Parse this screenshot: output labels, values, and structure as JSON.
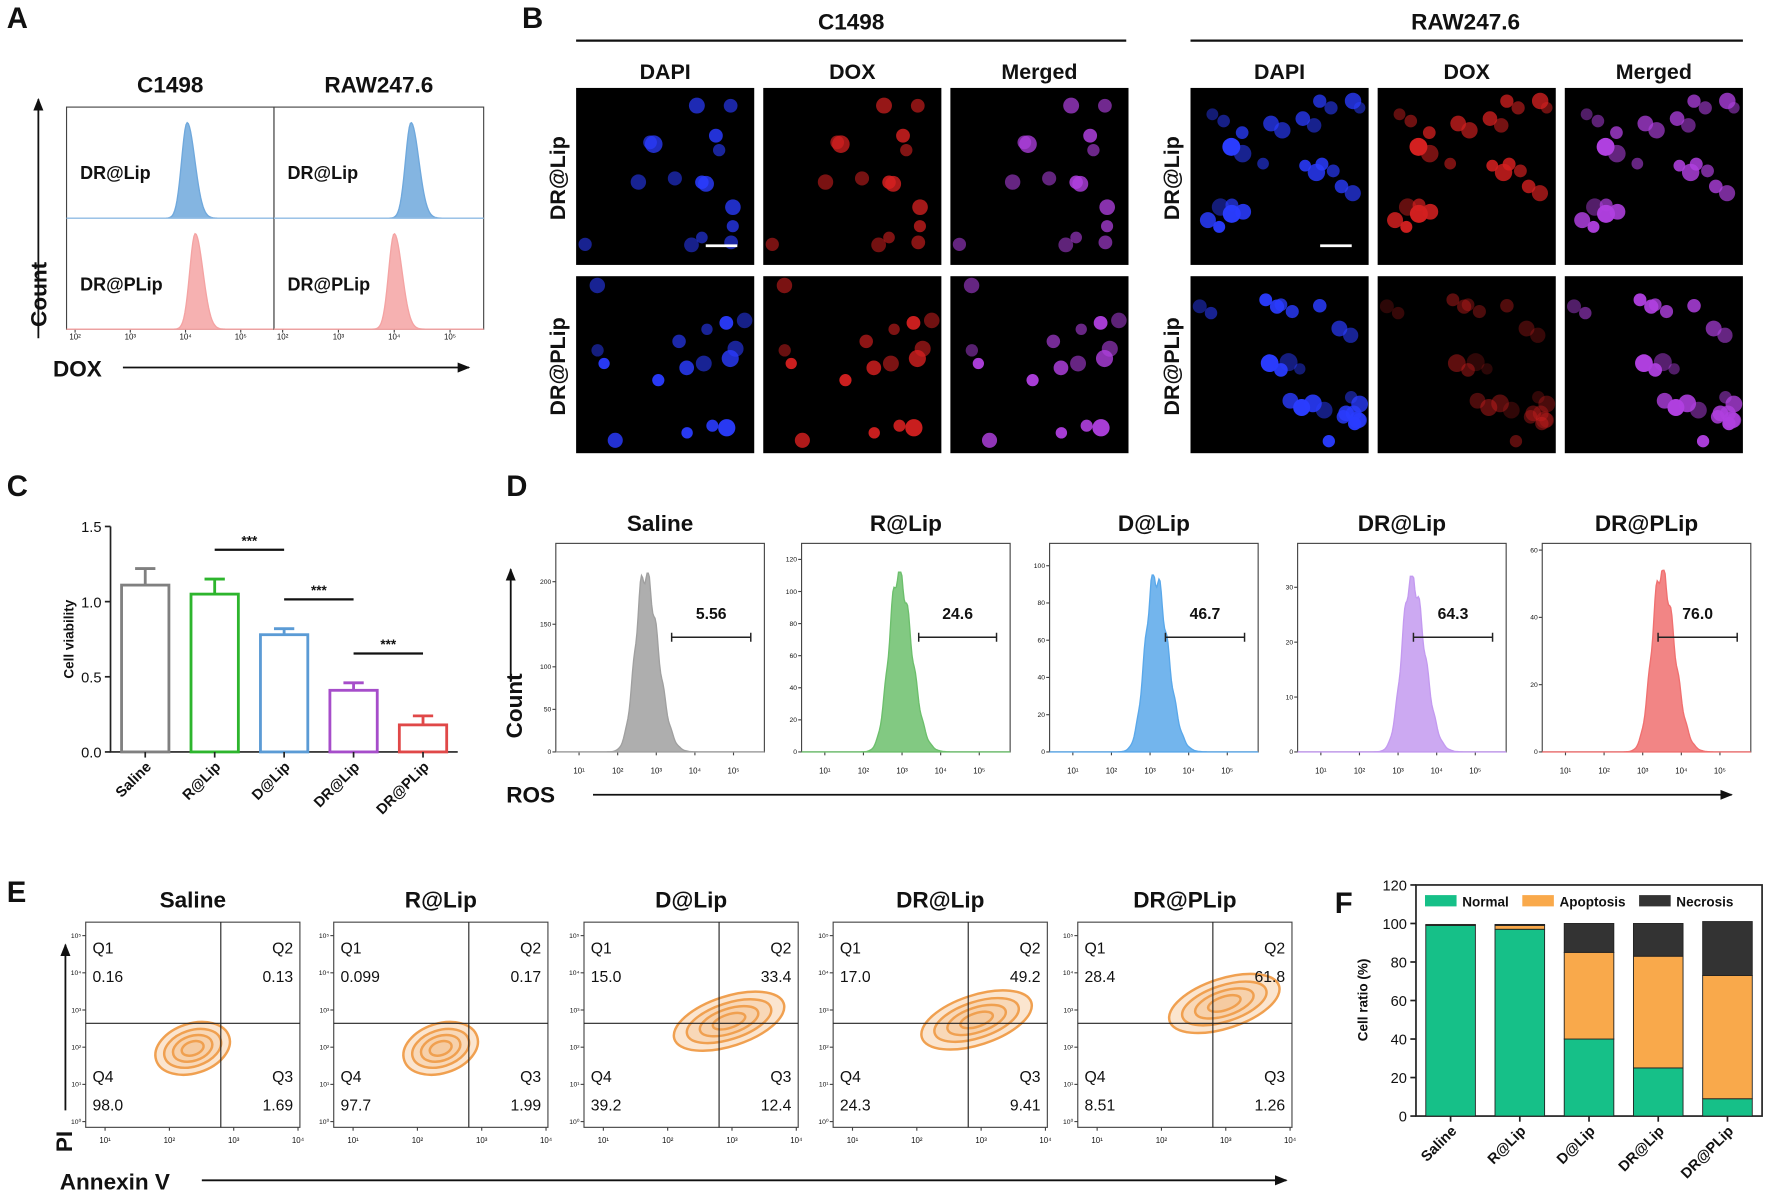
{
  "images": {
    "panel_label": "B",
    "groups": [
      {
        "title": "C1498",
        "columns": [
          "DAPI",
          "DOX",
          "Merged"
        ],
        "rows": [
          "DR@Lip",
          "DR@PLip"
        ]
      },
      {
        "title": "RAW247.6",
        "columns": [
          "DAPI",
          "DOX",
          "Merged"
        ],
        "rows": [
          "DR@Lip",
          "DR@PLip"
        ]
      }
    ]
  },
  "chart_data": [
    {
      "type": "histogram",
      "panel_label": "A",
      "x_label": "DOX",
      "y_label": "Count",
      "xscale": "log",
      "xlim": [
        70,
        400000
      ],
      "xticks": [
        {
          "value": 100,
          "label": "10²"
        },
        {
          "value": 1000,
          "label": "10³"
        },
        {
          "value": 10000,
          "label": "10⁴"
        },
        {
          "value": 100000,
          "label": "10⁵"
        }
      ],
      "panels": [
        {
          "title": "C1498",
          "series": [
            {
              "name": "DR@Lip",
              "color": "#6fa8dc",
              "peak": 10700
            },
            {
              "name": "DR@PLip",
              "color": "#f4a3a3",
              "peak": 15000
            }
          ]
        },
        {
          "title": "RAW247.6",
          "series": [
            {
              "name": "DR@Lip",
              "color": "#6fa8dc",
              "peak": 20000
            },
            {
              "name": "DR@PLip",
              "color": "#f4a3a3",
              "peak": 10000
            }
          ]
        }
      ]
    },
    {
      "type": "bar",
      "panel_label": "C",
      "y_label": "Cell viability",
      "categories": [
        "Saline",
        "R@Lip",
        "D@Lip",
        "DR@Lip",
        "DR@PLip"
      ],
      "values": [
        1.11,
        1.05,
        0.78,
        0.41,
        0.18
      ],
      "errors": [
        0.11,
        0.1,
        0.04,
        0.05,
        0.06
      ],
      "colors": [
        "#808080",
        "#2db52d",
        "#5b9bd5",
        "#a64dca",
        "#e04848"
      ],
      "ylim": [
        0,
        1.5
      ],
      "yticks": [
        {
          "value": 0,
          "label": "0.0"
        },
        0.5,
        {
          "value": 1,
          "label": "1.0"
        },
        1.5
      ],
      "annotations": [
        {
          "text": "***",
          "pair": [
            1,
            2
          ]
        },
        {
          "text": "***",
          "pair": [
            2,
            3
          ]
        },
        {
          "text": "***",
          "pair": [
            3,
            4
          ]
        }
      ]
    },
    {
      "type": "histogram",
      "panel_label": "D",
      "x_label": "ROS",
      "y_label": "Count",
      "xscale": "log",
      "xlim": [
        2.5,
        630000
      ],
      "xticks": [
        {
          "value": 10,
          "label": "10¹"
        },
        {
          "value": 100,
          "label": "10²"
        },
        {
          "value": 1000,
          "label": "10³"
        },
        {
          "value": 10000,
          "label": "10⁴"
        },
        {
          "value": 100000,
          "label": "10⁵"
        }
      ],
      "panels": [
        {
          "title": "Saline",
          "ylim": [
            0,
            245
          ],
          "yticks": [
            0,
            50,
            100,
            150,
            200
          ],
          "series": [
            {
              "color": "#a0a0a0",
              "peak": 500,
              "peak_count": 210
            }
          ],
          "gate": [
            2500,
            280000
          ],
          "gate_value": 5.56
        },
        {
          "title": "R@Lip",
          "ylim": [
            0,
            130
          ],
          "yticks": [
            0,
            20,
            40,
            60,
            80,
            100,
            120
          ],
          "series": [
            {
              "color": "#6cbf6c",
              "peak": 800,
              "peak_count": 112
            }
          ],
          "gate": [
            2700,
            280000
          ],
          "gate_value": 24.6
        },
        {
          "title": "D@Lip",
          "ylim": [
            0,
            112
          ],
          "yticks": [
            0,
            20,
            40,
            60,
            80,
            100
          ],
          "series": [
            {
              "color": "#5aa8ea",
              "peak": 1300,
              "peak_count": 95
            }
          ],
          "gate": [
            2500,
            280000
          ],
          "gate_value": 46.7
        },
        {
          "title": "DR@Lip",
          "ylim": [
            0,
            38
          ],
          "yticks": [
            0,
            10,
            20,
            30
          ],
          "series": [
            {
              "color": "#c39af0",
              "peak": 2200,
              "peak_count": 32
            }
          ],
          "gate": [
            2500,
            280000
          ],
          "gate_value": 64.3
        },
        {
          "title": "DR@PLip",
          "ylim": [
            0,
            62
          ],
          "yticks": [
            0,
            20,
            40,
            60
          ],
          "series": [
            {
              "color": "#f07070",
              "peak": 3000,
              "peak_count": 54
            }
          ],
          "gate": [
            2500,
            280000
          ],
          "gate_value": 76,
          "gate_label": "76.0"
        }
      ]
    },
    {
      "type": "contour",
      "panel_label": "E",
      "x_label": "Annexin V",
      "y_label": "PI",
      "xscale": "log",
      "yscale": "log",
      "color": "#f0a050",
      "xlim": [
        5,
        10700
      ],
      "ylim": [
        0.7,
        230000
      ],
      "xticks": [
        {
          "value": 10,
          "label": "10¹"
        },
        {
          "value": 100,
          "label": "10²"
        },
        {
          "value": 1000,
          "label": "10³"
        },
        {
          "value": 10000,
          "label": "10⁴"
        }
      ],
      "yticks": [
        {
          "value": 1,
          "label": "10⁰"
        },
        {
          "value": 10,
          "label": "10¹"
        },
        {
          "value": 100,
          "label": "10²"
        },
        {
          "value": 1000,
          "label": "10³"
        },
        {
          "value": 10000,
          "label": "10⁴"
        },
        {
          "value": 100000,
          "label": "10⁵"
        }
      ],
      "panels": [
        {
          "title": "Saline",
          "gate": [
            630,
            440
          ],
          "center": [
            230,
            93
          ],
          "quadrants": [
            {
              "name": "Q1",
              "value": 0.16
            },
            {
              "name": "Q2",
              "value": 0.13
            },
            {
              "name": "Q4",
              "value": 98,
              "label": "98.0"
            },
            {
              "name": "Q3",
              "value": 1.69
            }
          ]
        },
        {
          "title": "R@Lip",
          "gate": [
            630,
            440
          ],
          "center": [
            230,
            93
          ],
          "quadrants": [
            {
              "name": "Q1",
              "value": 0.099
            },
            {
              "name": "Q2",
              "value": 0.17
            },
            {
              "name": "Q4",
              "value": 97.7
            },
            {
              "name": "Q3",
              "value": 1.99
            }
          ]
        },
        {
          "title": "D@Lip",
          "gate": [
            630,
            440
          ],
          "center": [
            900,
            500
          ],
          "quadrants": [
            {
              "name": "Q1",
              "value": 15,
              "label": "15.0"
            },
            {
              "name": "Q2",
              "value": 33.4
            },
            {
              "name": "Q4",
              "value": 39.2
            },
            {
              "name": "Q3",
              "value": 12.4
            }
          ]
        },
        {
          "title": "DR@Lip",
          "gate": [
            630,
            440
          ],
          "center": [
            850,
            540
          ],
          "quadrants": [
            {
              "name": "Q1",
              "value": 17,
              "label": "17.0"
            },
            {
              "name": "Q2",
              "value": 49.2
            },
            {
              "name": "Q4",
              "value": 24.3
            },
            {
              "name": "Q3",
              "value": 9.41
            }
          ]
        },
        {
          "title": "DR@PLip",
          "gate": [
            630,
            440
          ],
          "center": [
            950,
            1500
          ],
          "quadrants": [
            {
              "name": "Q1",
              "value": 28.4
            },
            {
              "name": "Q2",
              "value": 61.8
            },
            {
              "name": "Q4",
              "value": 8.51
            },
            {
              "name": "Q3",
              "value": 1.26
            }
          ]
        }
      ]
    },
    {
      "type": "stacked-bar",
      "panel_label": "F",
      "y_label": "Cell ratio (%)",
      "legend": "top",
      "categories": [
        "Saline",
        "R@Lip",
        "D@Lip",
        "DR@Lip",
        "DR@PLip"
      ],
      "series": [
        {
          "name": "Normal",
          "color": "#16c088",
          "values": [
            99,
            97,
            40,
            25,
            9
          ]
        },
        {
          "name": "Apoptosis",
          "color": "#f9a94b",
          "values": [
            0.5,
            2,
            45,
            58,
            64
          ]
        },
        {
          "name": "Necrosis",
          "color": "#333333",
          "values": [
            0,
            0.5,
            15,
            17,
            28
          ]
        }
      ],
      "ylim": [
        0,
        120
      ],
      "yticks": [
        0,
        20,
        40,
        60,
        80,
        100,
        120
      ]
    }
  ]
}
